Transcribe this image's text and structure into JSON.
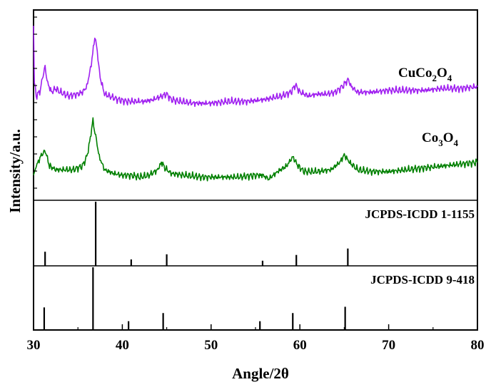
{
  "chart_data": {
    "type": "line",
    "xlabel": "Angle/2θ",
    "ylabel": "Intensity/a.u.",
    "xlim": [
      30,
      80
    ],
    "x_ticks": [
      "30",
      "40",
      "50",
      "60",
      "70",
      "80"
    ],
    "grid": false,
    "panels": {
      "spectra": {
        "series": [
          {
            "name": "CuCo₂O₄",
            "color": "#a020f0",
            "points": [
              [
                30.0,
                0.93
              ],
              [
                30.1,
                0.62
              ],
              [
                30.3,
                0.55
              ],
              [
                30.7,
                0.57
              ],
              [
                31.0,
                0.65
              ],
              [
                31.3,
                0.7
              ],
              [
                31.6,
                0.62
              ],
              [
                32.0,
                0.57
              ],
              [
                32.5,
                0.59
              ],
              [
                33.0,
                0.57
              ],
              [
                34.0,
                0.55
              ],
              [
                35.0,
                0.56
              ],
              [
                35.5,
                0.57
              ],
              [
                36.0,
                0.6
              ],
              [
                36.5,
                0.72
              ],
              [
                36.9,
                0.87
              ],
              [
                37.1,
                0.82
              ],
              [
                37.5,
                0.65
              ],
              [
                38.0,
                0.56
              ],
              [
                38.5,
                0.55
              ],
              [
                39.5,
                0.53
              ],
              [
                40.5,
                0.52
              ],
              [
                41.5,
                0.52
              ],
              [
                42.5,
                0.52
              ],
              [
                43.5,
                0.53
              ],
              [
                44.5,
                0.55
              ],
              [
                45.0,
                0.56
              ],
              [
                45.5,
                0.53
              ],
              [
                46.5,
                0.52
              ],
              [
                48.0,
                0.51
              ],
              [
                50.0,
                0.51
              ],
              [
                52.0,
                0.52
              ],
              [
                54.0,
                0.52
              ],
              [
                56.0,
                0.53
              ],
              [
                58.0,
                0.55
              ],
              [
                59.0,
                0.57
              ],
              [
                59.5,
                0.61
              ],
              [
                60.0,
                0.57
              ],
              [
                61.0,
                0.55
              ],
              [
                62.0,
                0.56
              ],
              [
                63.0,
                0.56
              ],
              [
                64.0,
                0.57
              ],
              [
                65.0,
                0.61
              ],
              [
                65.4,
                0.64
              ],
              [
                65.8,
                0.6
              ],
              [
                66.5,
                0.57
              ],
              [
                68.0,
                0.57
              ],
              [
                70.0,
                0.58
              ],
              [
                72.0,
                0.58
              ],
              [
                74.0,
                0.58
              ],
              [
                76.0,
                0.59
              ],
              [
                78.0,
                0.59
              ],
              [
                80.0,
                0.6
              ]
            ]
          },
          {
            "name": "Co₃O₄",
            "color": "#008000",
            "points": [
              [
                30.0,
                0.12
              ],
              [
                30.3,
                0.17
              ],
              [
                30.8,
                0.22
              ],
              [
                31.1,
                0.25
              ],
              [
                31.4,
                0.24
              ],
              [
                31.8,
                0.17
              ],
              [
                32.5,
                0.15
              ],
              [
                33.5,
                0.15
              ],
              [
                34.5,
                0.15
              ],
              [
                35.5,
                0.17
              ],
              [
                36.0,
                0.22
              ],
              [
                36.4,
                0.32
              ],
              [
                36.7,
                0.42
              ],
              [
                37.0,
                0.33
              ],
              [
                37.4,
                0.22
              ],
              [
                38.0,
                0.15
              ],
              [
                39.0,
                0.13
              ],
              [
                40.0,
                0.12
              ],
              [
                41.0,
                0.12
              ],
              [
                42.0,
                0.11
              ],
              [
                43.0,
                0.12
              ],
              [
                44.0,
                0.15
              ],
              [
                44.4,
                0.19
              ],
              [
                44.8,
                0.16
              ],
              [
                45.5,
                0.13
              ],
              [
                47.0,
                0.12
              ],
              [
                49.0,
                0.11
              ],
              [
                51.0,
                0.11
              ],
              [
                53.0,
                0.11
              ],
              [
                55.0,
                0.12
              ],
              [
                55.8,
                0.12
              ],
              [
                56.5,
                0.1
              ],
              [
                57.5,
                0.14
              ],
              [
                58.5,
                0.17
              ],
              [
                59.2,
                0.22
              ],
              [
                59.8,
                0.17
              ],
              [
                60.5,
                0.14
              ],
              [
                62.0,
                0.14
              ],
              [
                63.5,
                0.15
              ],
              [
                64.5,
                0.19
              ],
              [
                65.0,
                0.23
              ],
              [
                65.6,
                0.19
              ],
              [
                66.5,
                0.15
              ],
              [
                68.0,
                0.14
              ],
              [
                70.0,
                0.14
              ],
              [
                72.0,
                0.15
              ],
              [
                74.0,
                0.16
              ],
              [
                76.0,
                0.17
              ],
              [
                78.0,
                0.18
              ],
              [
                80.0,
                0.19
              ]
            ]
          }
        ],
        "labels": [
          {
            "base": "CuCo",
            "sub1": "2",
            "mid": "O",
            "sub2": "4"
          },
          {
            "base": "Co",
            "sub1": "3",
            "mid": "O",
            "sub2": "4"
          }
        ]
      },
      "references": [
        {
          "name": "JCPDS-ICDD 1-1155",
          "peaks": [
            {
              "x": 31.3,
              "rel": 0.22
            },
            {
              "x": 37.0,
              "rel": 1.0
            },
            {
              "x": 41.0,
              "rel": 0.1
            },
            {
              "x": 45.0,
              "rel": 0.18
            },
            {
              "x": 55.8,
              "rel": 0.08
            },
            {
              "x": 59.6,
              "rel": 0.17
            },
            {
              "x": 65.4,
              "rel": 0.27
            }
          ]
        },
        {
          "name": "JCPDS-ICDD 9-418",
          "peaks": [
            {
              "x": 31.2,
              "rel": 0.36
            },
            {
              "x": 36.7,
              "rel": 1.0
            },
            {
              "x": 40.7,
              "rel": 0.14
            },
            {
              "x": 44.6,
              "rel": 0.27
            },
            {
              "x": 55.5,
              "rel": 0.14
            },
            {
              "x": 59.2,
              "rel": 0.27
            },
            {
              "x": 65.1,
              "rel": 0.37
            }
          ]
        }
      ]
    }
  }
}
